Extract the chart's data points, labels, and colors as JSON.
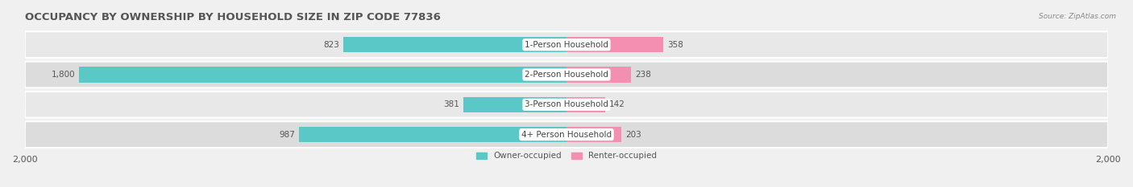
{
  "title": "OCCUPANCY BY OWNERSHIP BY HOUSEHOLD SIZE IN ZIP CODE 77836",
  "source": "Source: ZipAtlas.com",
  "categories": [
    "1-Person Household",
    "2-Person Household",
    "3-Person Household",
    "4+ Person Household"
  ],
  "owner_values": [
    823,
    1800,
    381,
    987
  ],
  "renter_values": [
    358,
    238,
    142,
    203
  ],
  "owner_color": "#5BC8C8",
  "renter_color": "#F48FB1",
  "axis_max": 2000,
  "bar_height": 0.52,
  "background_color": "#f0f0f0",
  "row_bg_light": "#e8e8e8",
  "row_bg_dark": "#dcdcdc",
  "legend_owner": "Owner-occupied",
  "legend_renter": "Renter-occupied",
  "title_fontsize": 9.5,
  "label_fontsize": 7.5,
  "axis_label_fontsize": 8,
  "value_fontsize": 7.5
}
